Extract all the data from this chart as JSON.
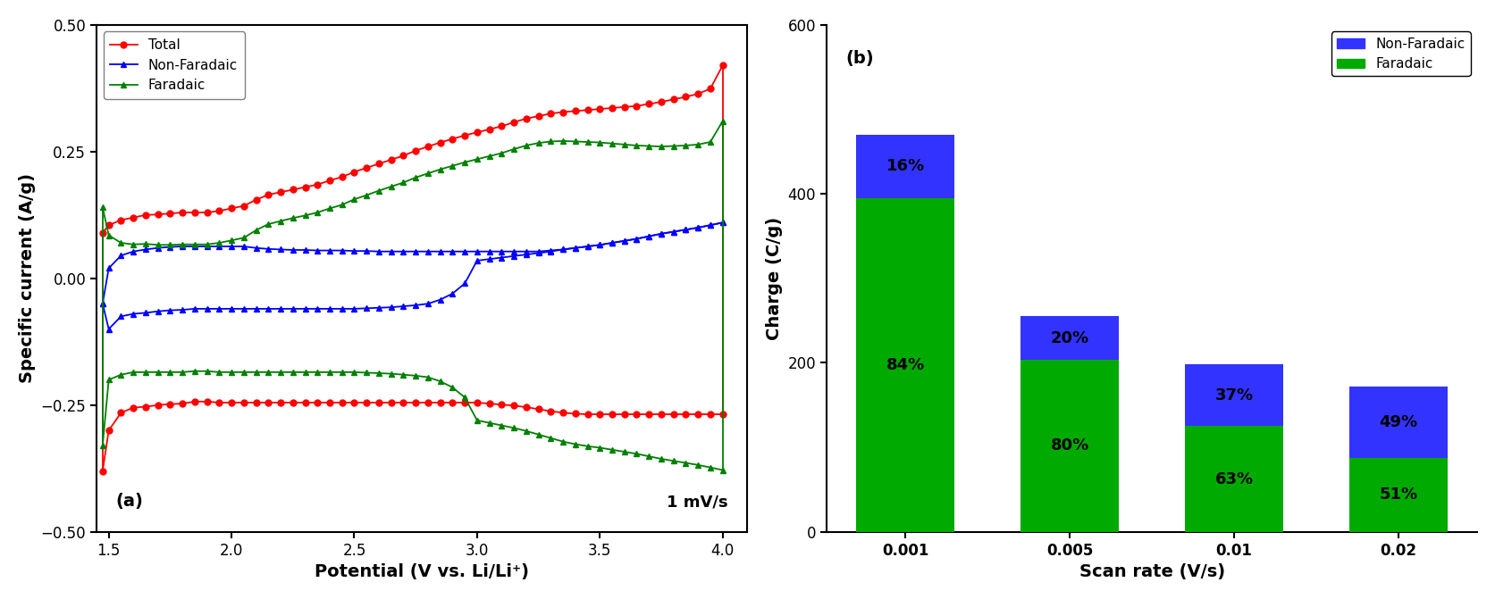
{
  "panel_a": {
    "label": "(a)",
    "annotation": "1 mV/s",
    "xlabel": "Potential (V vs. Li/Li⁺)",
    "ylabel": "Specific current (A/g)",
    "xlim": [
      1.45,
      4.1
    ],
    "ylim": [
      -0.5,
      0.5
    ],
    "xticks": [
      1.5,
      2.0,
      2.5,
      3.0,
      3.5,
      4.0
    ],
    "yticks": [
      -0.5,
      -0.25,
      0.0,
      0.25,
      0.5
    ],
    "total_color": "#ff0000",
    "non_faradaic_color": "#0000ff",
    "faradaic_color": "#008000",
    "total_v_anodic": [
      1.475,
      1.5,
      1.55,
      1.6,
      1.65,
      1.7,
      1.75,
      1.8,
      1.85,
      1.9,
      1.95,
      2.0,
      2.05,
      2.1,
      2.15,
      2.2,
      2.25,
      2.3,
      2.35,
      2.4,
      2.45,
      2.5,
      2.55,
      2.6,
      2.65,
      2.7,
      2.75,
      2.8,
      2.85,
      2.9,
      2.95,
      3.0,
      3.05,
      3.1,
      3.15,
      3.2,
      3.25,
      3.3,
      3.35,
      3.4,
      3.45,
      3.5,
      3.55,
      3.6,
      3.65,
      3.7,
      3.75,
      3.8,
      3.85,
      3.9,
      3.95,
      4.0
    ],
    "total_i_anodic": [
      0.09,
      0.105,
      0.115,
      0.12,
      0.125,
      0.126,
      0.128,
      0.13,
      0.13,
      0.13,
      0.133,
      0.138,
      0.143,
      0.155,
      0.165,
      0.17,
      0.175,
      0.18,
      0.185,
      0.193,
      0.2,
      0.21,
      0.218,
      0.226,
      0.234,
      0.242,
      0.252,
      0.26,
      0.268,
      0.275,
      0.282,
      0.288,
      0.294,
      0.3,
      0.308,
      0.315,
      0.32,
      0.325,
      0.328,
      0.33,
      0.332,
      0.334,
      0.336,
      0.338,
      0.34,
      0.344,
      0.348,
      0.353,
      0.358,
      0.364,
      0.374,
      0.42
    ],
    "total_v_cathodic": [
      4.0,
      3.95,
      3.9,
      3.85,
      3.8,
      3.75,
      3.7,
      3.65,
      3.6,
      3.55,
      3.5,
      3.45,
      3.4,
      3.35,
      3.3,
      3.25,
      3.2,
      3.15,
      3.1,
      3.05,
      3.0,
      2.95,
      2.9,
      2.85,
      2.8,
      2.75,
      2.7,
      2.65,
      2.6,
      2.55,
      2.5,
      2.45,
      2.4,
      2.35,
      2.3,
      2.25,
      2.2,
      2.15,
      2.1,
      2.05,
      2.0,
      1.95,
      1.9,
      1.85,
      1.8,
      1.75,
      1.7,
      1.65,
      1.6,
      1.55,
      1.5,
      1.475
    ],
    "total_i_cathodic": [
      -0.268,
      -0.268,
      -0.268,
      -0.268,
      -0.268,
      -0.268,
      -0.268,
      -0.268,
      -0.268,
      -0.268,
      -0.268,
      -0.268,
      -0.267,
      -0.265,
      -0.262,
      -0.258,
      -0.254,
      -0.251,
      -0.249,
      -0.247,
      -0.245,
      -0.245,
      -0.245,
      -0.245,
      -0.245,
      -0.245,
      -0.245,
      -0.245,
      -0.245,
      -0.245,
      -0.245,
      -0.245,
      -0.245,
      -0.245,
      -0.245,
      -0.245,
      -0.245,
      -0.245,
      -0.245,
      -0.245,
      -0.245,
      -0.245,
      -0.243,
      -0.243,
      -0.247,
      -0.248,
      -0.25,
      -0.253,
      -0.255,
      -0.265,
      -0.3,
      -0.38
    ],
    "nf_v_anodic": [
      1.475,
      1.5,
      1.55,
      1.6,
      1.65,
      1.7,
      1.75,
      1.8,
      1.85,
      1.9,
      1.95,
      2.0,
      2.05,
      2.1,
      2.15,
      2.2,
      2.25,
      2.3,
      2.35,
      2.4,
      2.45,
      2.5,
      2.55,
      2.6,
      2.65,
      2.7,
      2.75,
      2.8,
      2.85,
      2.9,
      2.95,
      3.0,
      3.05,
      3.1,
      3.15,
      3.2,
      3.25,
      3.3,
      3.35,
      3.4,
      3.45,
      3.5,
      3.55,
      3.6,
      3.65,
      3.7,
      3.75,
      3.8,
      3.85,
      3.9,
      3.95,
      4.0
    ],
    "nf_i_anodic": [
      -0.05,
      0.02,
      0.045,
      0.053,
      0.057,
      0.06,
      0.062,
      0.063,
      0.063,
      0.063,
      0.063,
      0.063,
      0.063,
      0.06,
      0.058,
      0.057,
      0.056,
      0.056,
      0.055,
      0.055,
      0.055,
      0.054,
      0.054,
      0.053,
      0.053,
      0.053,
      0.053,
      0.053,
      0.053,
      0.053,
      0.053,
      0.053,
      0.053,
      0.053,
      0.053,
      0.053,
      0.053,
      0.055,
      0.057,
      0.06,
      0.063,
      0.066,
      0.07,
      0.074,
      0.078,
      0.083,
      0.088,
      0.092,
      0.096,
      0.1,
      0.105,
      0.11
    ],
    "nf_v_cathodic": [
      4.0,
      3.95,
      3.9,
      3.85,
      3.8,
      3.75,
      3.7,
      3.65,
      3.6,
      3.55,
      3.5,
      3.45,
      3.4,
      3.35,
      3.3,
      3.25,
      3.2,
      3.15,
      3.1,
      3.05,
      3.0,
      2.95,
      2.9,
      2.85,
      2.8,
      2.75,
      2.7,
      2.65,
      2.6,
      2.55,
      2.5,
      2.45,
      2.4,
      2.35,
      2.3,
      2.25,
      2.2,
      2.15,
      2.1,
      2.05,
      2.0,
      1.95,
      1.9,
      1.85,
      1.8,
      1.75,
      1.7,
      1.65,
      1.6,
      1.55,
      1.5,
      1.475
    ],
    "nf_i_cathodic": [
      0.11,
      0.105,
      0.1,
      0.096,
      0.092,
      0.088,
      0.083,
      0.078,
      0.074,
      0.07,
      0.066,
      0.063,
      0.06,
      0.057,
      0.053,
      0.05,
      0.047,
      0.044,
      0.041,
      0.038,
      0.035,
      -0.01,
      -0.03,
      -0.042,
      -0.05,
      -0.053,
      -0.055,
      -0.057,
      -0.058,
      -0.059,
      -0.06,
      -0.06,
      -0.06,
      -0.06,
      -0.06,
      -0.06,
      -0.06,
      -0.06,
      -0.06,
      -0.06,
      -0.06,
      -0.06,
      -0.06,
      -0.06,
      -0.062,
      -0.063,
      -0.065,
      -0.068,
      -0.07,
      -0.075,
      -0.1,
      -0.05
    ]
  },
  "panel_b": {
    "label": "(b)",
    "xlabel": "Scan rate (V/s)",
    "ylabel": "Charge (C/g)",
    "ylim": [
      0,
      600
    ],
    "yticks": [
      0,
      200,
      400,
      600
    ],
    "categories": [
      "0.001",
      "0.005",
      "0.01",
      "0.02"
    ],
    "faradaic_values": [
      395,
      204,
      125,
      88
    ],
    "non_faradaic_values": [
      75,
      51,
      73,
      84
    ],
    "faradaic_pcts": [
      "84%",
      "80%",
      "63%",
      "51%"
    ],
    "non_faradaic_pcts": [
      "16%",
      "20%",
      "37%",
      "49%"
    ],
    "faradaic_color": "#00aa00",
    "non_faradaic_color": "#3333ff",
    "legend_labels": [
      "Non-Faradaic",
      "Faradaic"
    ]
  }
}
